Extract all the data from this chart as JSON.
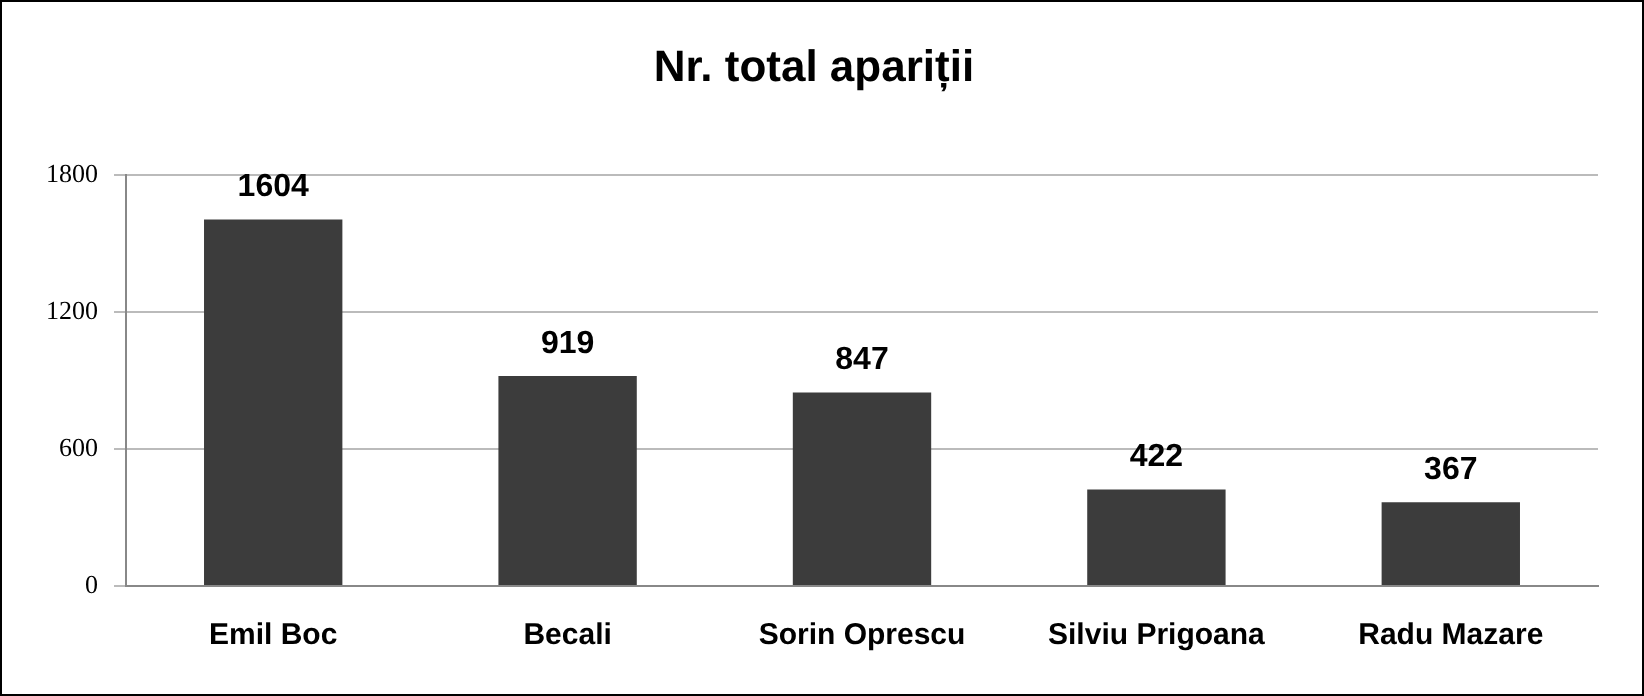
{
  "chart_data": {
    "type": "bar",
    "title": "Nr. total apariții",
    "categories": [
      "Emil Boc",
      "Becali",
      "Sorin Oprescu",
      "Silviu Prigoana",
      "Radu Mazare"
    ],
    "values": [
      1604,
      919,
      847,
      422,
      367
    ],
    "color": "#3c3c3c",
    "ylim": [
      0,
      1800
    ],
    "yticks": [
      0,
      600,
      1200,
      1800
    ],
    "grid": "y",
    "data_labels": true,
    "legend": false
  }
}
